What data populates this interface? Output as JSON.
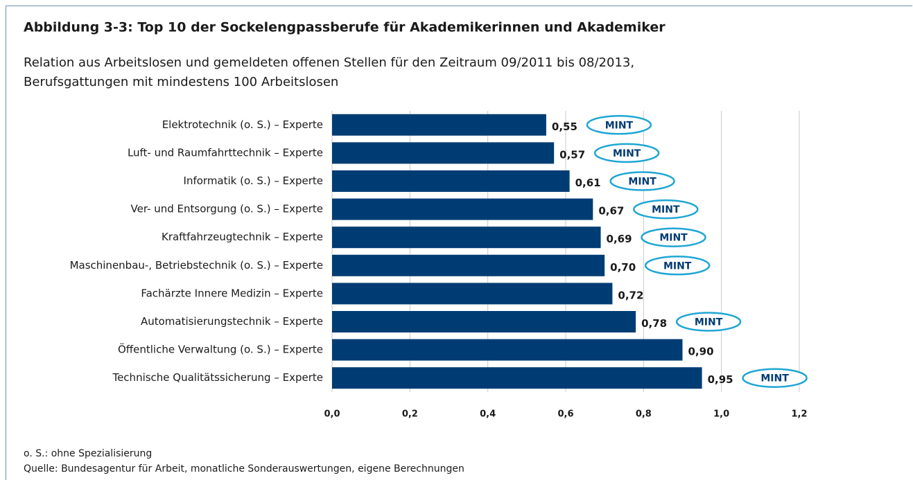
{
  "chart_data": {
    "type": "barh",
    "title": "Abbildung 3-3: Top 10 der Sockelengpassberufe für Akademikerinnen und Akademiker",
    "subtitle": [
      "Relation aus Arbeitslosen und gemeldeten offenen Stellen für den Zeitraum 09/2011 bis 08/2013,",
      "Berufsgattungen mit mindestens 100 Arbeitslosen"
    ],
    "categories": [
      "Elektrotechnik (o. S.) – Experte",
      "Luft- und Raumfahrttechnik – Experte",
      "Informatik (o. S.) – Experte",
      "Ver- und Entsorgung (o. S.) – Experte",
      "Kraftfahrzeugtechnik – Experte",
      "Maschinenbau-, Betriebstechnik (o. S.) – Experte",
      "Fachärzte Innere Medizin – Experte",
      "Automatisierungstechnik – Experte",
      "Öffentliche Verwaltung (o. S.) – Experte",
      "Technische Qualitätssicherung – Experte"
    ],
    "values": [
      0.55,
      0.57,
      0.61,
      0.67,
      0.69,
      0.7,
      0.72,
      0.78,
      0.9,
      0.95
    ],
    "value_labels": [
      "0,55",
      "0,57",
      "0,61",
      "0,67",
      "0,69",
      "0,70",
      "0,72",
      "0,78",
      "0,90",
      "0,95"
    ],
    "annotations": [
      "MINT",
      "MINT",
      "MINT",
      "MINT",
      "MINT",
      "MINT",
      null,
      "MINT",
      null,
      "MINT"
    ],
    "color": "#003c74",
    "annotation_color": "#1fa6d4",
    "xlim": [
      0,
      1.2
    ],
    "xticks": [
      {
        "value": 0,
        "label": "0,0"
      },
      {
        "value": 0.2,
        "label": "0,2"
      },
      {
        "value": 0.4,
        "label": "0,4"
      },
      {
        "value": 0.6,
        "label": "0,6"
      },
      {
        "value": 0.8,
        "label": "0,8"
      },
      {
        "value": 1.0,
        "label": "1,0"
      },
      {
        "value": 1.2,
        "label": "1,2"
      }
    ],
    "grid": true,
    "notes": [
      "o. S.: ohne Spezialisierung",
      "Quelle: Bundesagentur für Arbeit, monatliche Sonderauswertungen, eigene Berechnungen"
    ]
  }
}
